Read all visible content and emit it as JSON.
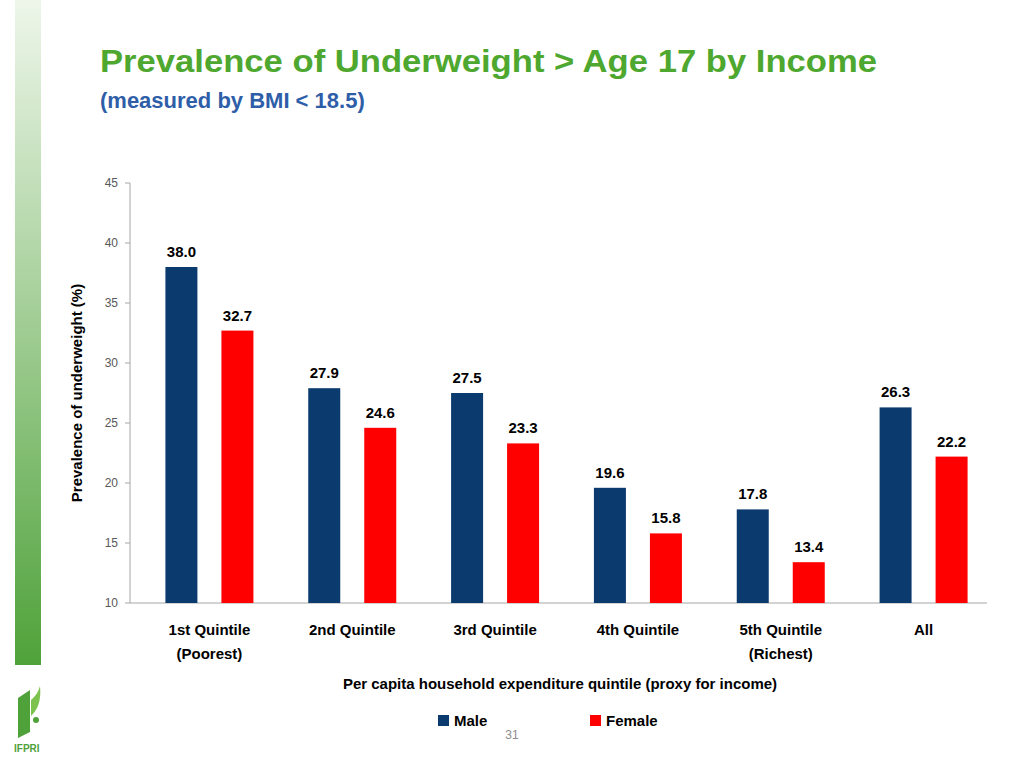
{
  "chart_data": {
    "type": "bar",
    "title": "Prevalence of Underweight > Age 17 by Income",
    "subtitle": "(measured by BMI < 18.5)",
    "x_label": "Per capita household expenditure quintile (proxy for income)",
    "y_label": "Prevalence of underweight (%)",
    "categories": [
      "1st Quintile\n(Poorest)",
      "2nd Quintile",
      "3rd Quintile",
      "4th Quintile",
      "5th Quintile\n(Richest)",
      "All"
    ],
    "series": [
      {
        "name": "Male",
        "color": "#0b3a6e",
        "values": [
          38.0,
          27.9,
          27.5,
          19.6,
          17.8,
          26.3
        ],
        "value_labels": [
          "38.0",
          "27.9",
          "27.5",
          "19.6",
          "17.8",
          "26.3"
        ]
      },
      {
        "name": "Female",
        "color": "#ff0000",
        "values": [
          32.7,
          24.6,
          23.3,
          15.8,
          13.4,
          22.2
        ],
        "value_labels": [
          "32.7",
          "24.6",
          "23.3",
          "15.8",
          "13.4",
          "22.2"
        ]
      }
    ],
    "ylim": [
      10,
      45
    ],
    "yticks": [
      10,
      15,
      20,
      25,
      30,
      35,
      40,
      45
    ],
    "grid": false,
    "legend": "bottom",
    "data_labels": true
  },
  "slide": {
    "page_number": "31",
    "logo": "IFPRI"
  }
}
